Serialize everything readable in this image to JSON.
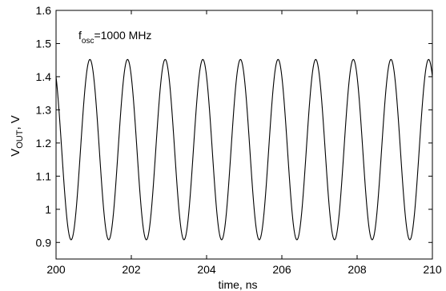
{
  "chart_data": {
    "type": "line",
    "xlabel": "time, ns",
    "ylabel": {
      "main": "V",
      "sub": "OUT",
      "unit": ", V"
    },
    "xlim": [
      200,
      210
    ],
    "ylim": [
      0.85,
      1.6
    ],
    "xticks": [
      200,
      202,
      204,
      206,
      208,
      210
    ],
    "yticks": [
      0.9,
      1,
      1.1,
      1.2,
      1.3,
      1.4,
      1.5,
      1.6
    ],
    "xtick_labels": [
      "200",
      "202",
      "204",
      "206",
      "208",
      "210"
    ],
    "ytick_labels": [
      "0.9",
      "1",
      "1.1",
      "1.2",
      "1.3",
      "1.4",
      "1.5",
      "1.6"
    ],
    "annotation": {
      "main": "f",
      "sub": "osc",
      "rest": "=1000 MHz"
    },
    "grid": false,
    "series": [
      {
        "color": "#000000",
        "waveform": {
          "shape": "sine",
          "frequency_ghz": 1.0,
          "min_v": 0.908,
          "max_v": 1.452,
          "first_peak_ns": 200.9
        }
      }
    ]
  }
}
